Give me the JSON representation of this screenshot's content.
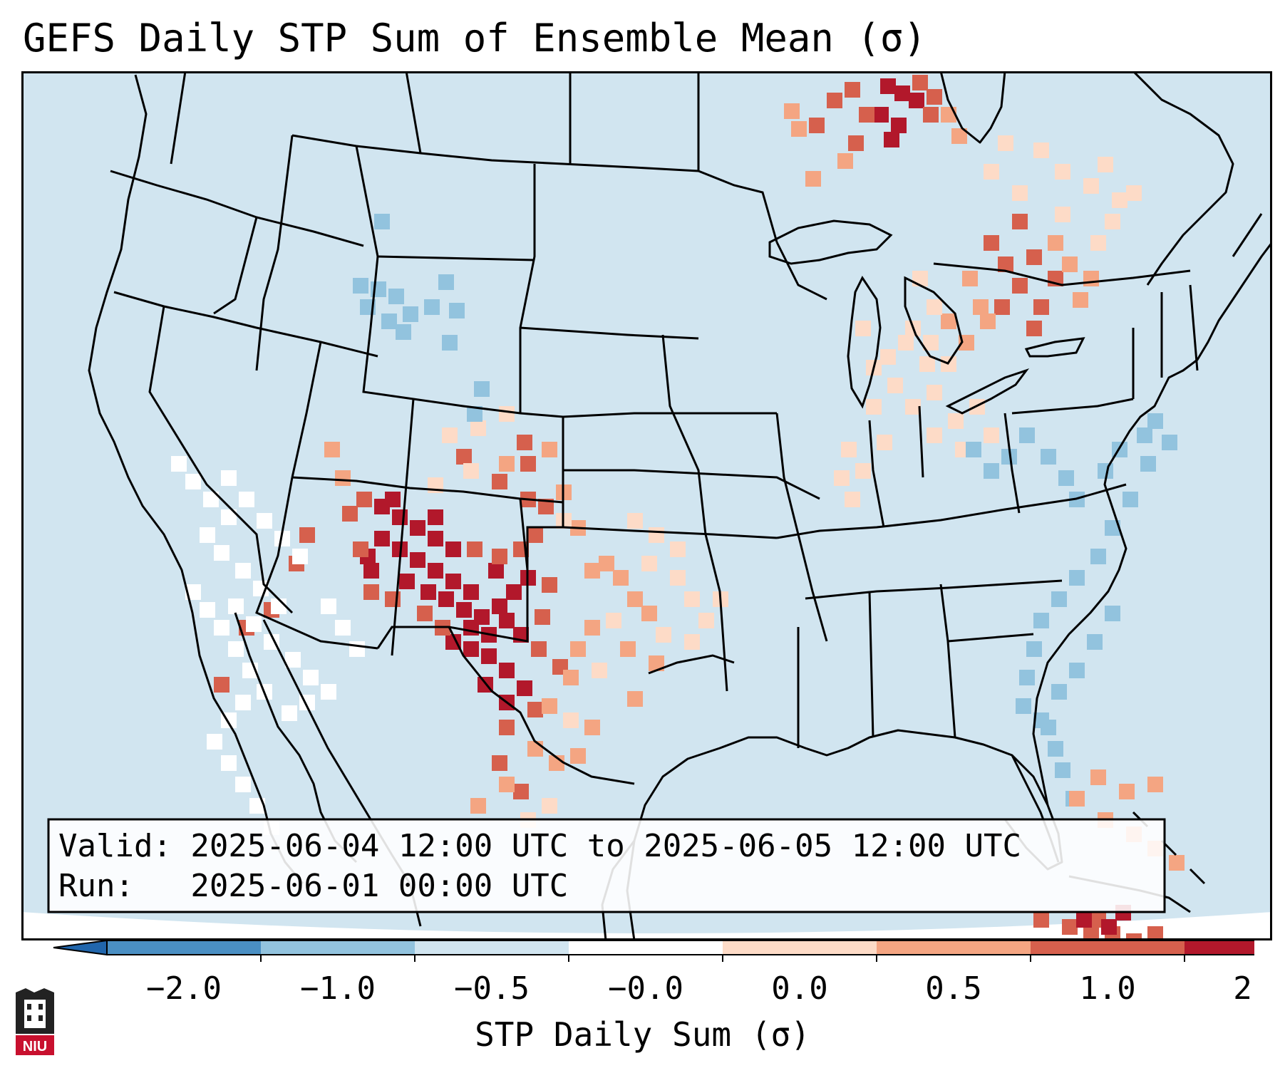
{
  "title": "GEFS Daily STP Sum of Ensemble Mean (σ)",
  "info": {
    "valid_line": "Valid: 2025-06-04 12:00 UTC to 2025-06-05 12:00 UTC",
    "run_line": "Run:   2025-06-01 00:00 UTC"
  },
  "colorbar": {
    "label": "STP Daily Sum (σ)",
    "ticks": [
      "−2.0",
      "−1.0",
      "−0.5",
      "−0.0",
      "0.0",
      "0.5",
      "1.0",
      "2.0"
    ],
    "colors": [
      "#4a8fc3",
      "#92c3de",
      "#d1e5f0",
      "#ffffff",
      "#fddbc7",
      "#f4a582",
      "#d6604d",
      "#b2182b"
    ],
    "extend_low_color": "#2166ac",
    "extend_high_color": "#b2182b"
  },
  "logo": {
    "text": "NIU"
  },
  "map": {
    "background_color": "#d1e5f0",
    "regions": [
      {
        "name": "northern-ontario-max",
        "level": "max",
        "cells": [
          [
            1235,
            110
          ],
          [
            1255,
            120
          ],
          [
            1225,
            150
          ],
          [
            1250,
            165
          ],
          [
            1275,
            130
          ],
          [
            1240,
            185
          ]
        ]
      },
      {
        "name": "northern-ontario-high",
        "level": "high",
        "cells": [
          [
            1160,
            130
          ],
          [
            1185,
            115
          ],
          [
            1205,
            150
          ],
          [
            1280,
            105
          ],
          [
            1295,
            150
          ],
          [
            1135,
            165
          ],
          [
            1190,
            190
          ],
          [
            1300,
            125
          ]
        ]
      },
      {
        "name": "northern-ontario-mid",
        "level": "mid",
        "cells": [
          [
            1100,
            145
          ],
          [
            1110,
            170
          ],
          [
            1320,
            150
          ],
          [
            1335,
            180
          ],
          [
            1175,
            215
          ],
          [
            1130,
            240
          ]
        ]
      },
      {
        "name": "southern-plains-max",
        "level": "max",
        "cells": [
          [
            525,
            700
          ],
          [
            550,
            715
          ],
          [
            575,
            730
          ],
          [
            600,
            745
          ],
          [
            625,
            760
          ],
          [
            525,
            745
          ],
          [
            550,
            760
          ],
          [
            575,
            775
          ],
          [
            600,
            790
          ],
          [
            625,
            805
          ],
          [
            650,
            820
          ],
          [
            540,
            690
          ],
          [
            600,
            715
          ],
          [
            650,
            870
          ],
          [
            675,
            880
          ],
          [
            625,
            890
          ],
          [
            650,
            900
          ],
          [
            675,
            910
          ],
          [
            700,
            930
          ],
          [
            725,
            955
          ],
          [
            700,
            975
          ],
          [
            670,
            950
          ],
          [
            720,
            880
          ],
          [
            700,
            860
          ],
          [
            505,
            770
          ],
          [
            510,
            790
          ],
          [
            560,
            805
          ],
          [
            590,
            820
          ],
          [
            615,
            830
          ],
          [
            640,
            845
          ],
          [
            665,
            855
          ],
          [
            690,
            840
          ],
          [
            710,
            820
          ],
          [
            730,
            800
          ],
          [
            685,
            790
          ]
        ]
      },
      {
        "name": "southern-plains-high",
        "level": "high",
        "cells": [
          [
            480,
            710
          ],
          [
            500,
            690
          ],
          [
            495,
            760
          ],
          [
            510,
            820
          ],
          [
            540,
            830
          ],
          [
            585,
            850
          ],
          [
            610,
            870
          ],
          [
            655,
            760
          ],
          [
            690,
            770
          ],
          [
            720,
            760
          ],
          [
            740,
            740
          ],
          [
            755,
            700
          ],
          [
            730,
            690
          ],
          [
            760,
            810
          ],
          [
            750,
            855
          ],
          [
            745,
            900
          ],
          [
            775,
            925
          ],
          [
            740,
            985
          ],
          [
            700,
            1010
          ],
          [
            690,
            1060
          ],
          [
            720,
            1100
          ],
          [
            420,
            740
          ],
          [
            405,
            780
          ],
          [
            370,
            845
          ],
          [
            335,
            870
          ],
          [
            300,
            950
          ],
          [
            640,
            630
          ],
          [
            690,
            665
          ],
          [
            730,
            640
          ],
          [
            725,
            610
          ]
        ]
      },
      {
        "name": "southern-plains-mid",
        "level": "mid",
        "cells": [
          [
            455,
            620
          ],
          [
            470,
            660
          ],
          [
            700,
            640
          ],
          [
            760,
            620
          ],
          [
            780,
            680
          ],
          [
            800,
            730
          ],
          [
            820,
            790
          ],
          [
            840,
            780
          ],
          [
            860,
            800
          ],
          [
            880,
            830
          ],
          [
            900,
            850
          ],
          [
            820,
            870
          ],
          [
            800,
            900
          ],
          [
            790,
            940
          ],
          [
            760,
            980
          ],
          [
            740,
            1040
          ],
          [
            770,
            1060
          ],
          [
            700,
            1090
          ],
          [
            660,
            1120
          ],
          [
            870,
            900
          ],
          [
            910,
            920
          ],
          [
            880,
            970
          ],
          [
            820,
            1010
          ],
          [
            800,
            1050
          ]
        ]
      },
      {
        "name": "southern-plains-light",
        "level": "low",
        "cells": [
          [
            620,
            600
          ],
          [
            660,
            590
          ],
          [
            700,
            570
          ],
          [
            650,
            650
          ],
          [
            600,
            670
          ],
          [
            780,
            720
          ],
          [
            900,
            780
          ],
          [
            940,
            800
          ],
          [
            960,
            830
          ],
          [
            850,
            860
          ],
          [
            830,
            930
          ],
          [
            790,
            1000
          ],
          [
            760,
            1120
          ],
          [
            730,
            1140
          ],
          [
            920,
            880
          ],
          [
            960,
            890
          ],
          [
            980,
            860
          ],
          [
            1000,
            830
          ],
          [
            940,
            760
          ],
          [
            910,
            740
          ],
          [
            880,
            720
          ]
        ]
      },
      {
        "name": "ohio-valley-light",
        "level": "low",
        "cells": [
          [
            1200,
            450
          ],
          [
            1235,
            490
          ],
          [
            1260,
            470
          ],
          [
            1245,
            530
          ],
          [
            1215,
            560
          ],
          [
            1270,
            560
          ],
          [
            1300,
            540
          ],
          [
            1230,
            610
          ],
          [
            1200,
            650
          ],
          [
            1185,
            690
          ],
          [
            1300,
            600
          ],
          [
            1330,
            580
          ],
          [
            1360,
            560
          ],
          [
            1380,
            600
          ],
          [
            1340,
            620
          ],
          [
            1320,
            500
          ],
          [
            1295,
            470
          ],
          [
            1215,
            505
          ],
          [
            1180,
            620
          ],
          [
            1170,
            660
          ]
        ]
      },
      {
        "name": "great-lakes-high",
        "level": "high",
        "cells": [
          [
            1380,
            330
          ],
          [
            1400,
            360
          ],
          [
            1420,
            390
          ],
          [
            1395,
            420
          ],
          [
            1440,
            350
          ],
          [
            1470,
            380
          ],
          [
            1450,
            420
          ],
          [
            1440,
            450
          ],
          [
            1420,
            300
          ]
        ]
      },
      {
        "name": "great-lakes-mid",
        "level": "mid",
        "cells": [
          [
            1350,
            380
          ],
          [
            1365,
            420
          ],
          [
            1375,
            440
          ],
          [
            1470,
            330
          ],
          [
            1490,
            360
          ],
          [
            1320,
            440
          ],
          [
            1345,
            470
          ],
          [
            1505,
            410
          ],
          [
            1520,
            380
          ]
        ]
      },
      {
        "name": "great-lakes-light",
        "level": "low",
        "cells": [
          [
            1280,
            380
          ],
          [
            1300,
            420
          ],
          [
            1270,
            450
          ],
          [
            1290,
            500
          ],
          [
            1530,
            330
          ],
          [
            1550,
            300
          ],
          [
            1560,
            270
          ],
          [
            1520,
            250
          ],
          [
            1480,
            230
          ],
          [
            1450,
            200
          ],
          [
            1400,
            190
          ],
          [
            1380,
            230
          ],
          [
            1420,
            260
          ],
          [
            1480,
            290
          ],
          [
            1540,
            220
          ],
          [
            1580,
            260
          ]
        ]
      },
      {
        "name": "southwest-white",
        "level": "neutral",
        "cells": [
          [
            240,
            640
          ],
          [
            260,
            665
          ],
          [
            285,
            690
          ],
          [
            310,
            715
          ],
          [
            280,
            740
          ],
          [
            300,
            765
          ],
          [
            330,
            790
          ],
          [
            355,
            815
          ],
          [
            380,
            840
          ],
          [
            320,
            840
          ],
          [
            345,
            865
          ],
          [
            370,
            890
          ],
          [
            400,
            915
          ],
          [
            425,
            940
          ],
          [
            450,
            960
          ],
          [
            420,
            975
          ],
          [
            395,
            990
          ],
          [
            260,
            820
          ],
          [
            280,
            845
          ],
          [
            300,
            870
          ],
          [
            320,
            900
          ],
          [
            340,
            930
          ],
          [
            360,
            960
          ],
          [
            330,
            975
          ],
          [
            310,
            1000
          ],
          [
            290,
            1030
          ],
          [
            310,
            1060
          ],
          [
            330,
            1090
          ],
          [
            350,
            1120
          ],
          [
            370,
            1150
          ],
          [
            310,
            660
          ],
          [
            335,
            690
          ],
          [
            360,
            720
          ],
          [
            385,
            745
          ],
          [
            410,
            770
          ],
          [
            450,
            840
          ],
          [
            470,
            870
          ],
          [
            490,
            900
          ]
        ]
      },
      {
        "name": "north-blue",
        "level": "light-blue",
        "cells": [
          [
            495,
            390
          ],
          [
            520,
            395
          ],
          [
            545,
            405
          ],
          [
            505,
            420
          ],
          [
            535,
            440
          ],
          [
            565,
            430
          ],
          [
            555,
            455
          ],
          [
            595,
            420
          ],
          [
            620,
            470
          ],
          [
            525,
            300
          ],
          [
            615,
            385
          ],
          [
            630,
            425
          ],
          [
            665,
            535
          ],
          [
            655,
            570
          ]
        ]
      },
      {
        "name": "east-coast-blue",
        "level": "light-blue",
        "cells": [
          [
            1355,
            620
          ],
          [
            1380,
            650
          ],
          [
            1405,
            630
          ],
          [
            1430,
            600
          ],
          [
            1460,
            630
          ],
          [
            1485,
            660
          ],
          [
            1500,
            690
          ],
          [
            1540,
            650
          ],
          [
            1560,
            620
          ],
          [
            1595,
            600
          ],
          [
            1610,
            580
          ],
          [
            1630,
            610
          ],
          [
            1600,
            640
          ],
          [
            1575,
            690
          ],
          [
            1550,
            730
          ],
          [
            1530,
            770
          ],
          [
            1500,
            800
          ],
          [
            1475,
            830
          ],
          [
            1450,
            860
          ],
          [
            1440,
            900
          ],
          [
            1430,
            940
          ],
          [
            1425,
            980
          ],
          [
            1450,
            1000
          ],
          [
            1475,
            960
          ],
          [
            1500,
            930
          ],
          [
            1525,
            890
          ],
          [
            1550,
            850
          ],
          [
            1460,
            1010
          ],
          [
            1470,
            1040
          ],
          [
            1480,
            1070
          ],
          [
            1495,
            1110
          ]
        ]
      },
      {
        "name": "caribbean-mid",
        "level": "mid",
        "cells": [
          [
            1500,
            1110
          ],
          [
            1540,
            1140
          ],
          [
            1580,
            1160
          ],
          [
            1610,
            1180
          ],
          [
            1640,
            1200
          ],
          [
            1570,
            1100
          ],
          [
            1530,
            1080
          ],
          [
            1610,
            1090
          ]
        ]
      },
      {
        "name": "cuba-high",
        "level": "high",
        "cells": [
          [
            1450,
            1280
          ],
          [
            1490,
            1290
          ],
          [
            1520,
            1300
          ],
          [
            1550,
            1300
          ],
          [
            1580,
            1310
          ],
          [
            1610,
            1300
          ],
          [
            1530,
            1280
          ]
        ]
      },
      {
        "name": "cuba-max",
        "level": "max",
        "cells": [
          [
            1510,
            1280
          ],
          [
            1545,
            1290
          ],
          [
            1565,
            1270
          ]
        ]
      }
    ]
  }
}
